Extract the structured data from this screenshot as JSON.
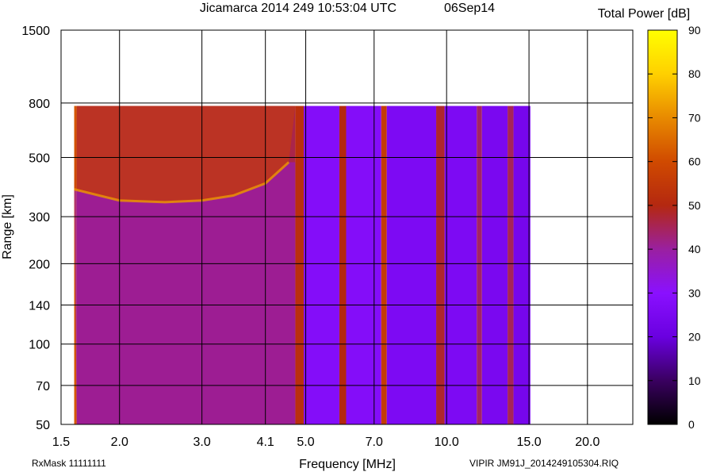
{
  "header": {
    "title": "Jicamarca 2014 249 10:53:04 UTC",
    "date": "06Sep14",
    "colorbar_label": "Total Power [dB]"
  },
  "footer": {
    "rxmask": "RxMask 11111111",
    "filename": "VIPIR  JM91J_2014249105304.RIQ"
  },
  "chart_data": {
    "type": "heatmap",
    "title": "Jicamarca 2014 249 10:53:04 UTC",
    "xlabel": "Frequency [MHz]",
    "ylabel": "Range [km]",
    "xscale": "log",
    "yscale": "log",
    "xlim": [
      1.5,
      25
    ],
    "ylim": [
      50,
      1500
    ],
    "grid": true,
    "x_ticks": [
      1.5,
      2.0,
      3.0,
      4.1,
      5.0,
      7.0,
      10.0,
      15.0,
      20.0
    ],
    "x_tick_labels": [
      "1.5",
      "2.0",
      "3.0",
      "4.1",
      "5.0",
      "7.0",
      "10.0",
      "15.0",
      "20.0"
    ],
    "y_ticks": [
      50,
      70,
      100,
      140,
      200,
      300,
      500,
      800,
      1500
    ],
    "y_tick_labels": [
      "50",
      "70",
      "100",
      "140",
      "200",
      "300",
      "500",
      "800",
      "1500"
    ],
    "colorbar": {
      "label": "Total Power [dB]",
      "range": [
        0,
        90
      ],
      "ticks": [
        0,
        10,
        20,
        30,
        40,
        50,
        60,
        70,
        80,
        90
      ],
      "tick_labels": [
        "0",
        "10",
        "20",
        "30",
        "40",
        "50",
        "60",
        "70",
        "80",
        "90"
      ],
      "stops": [
        {
          "value": 0,
          "color": "#000000"
        },
        {
          "value": 10,
          "color": "#3a0060"
        },
        {
          "value": 20,
          "color": "#6a00e0"
        },
        {
          "value": 30,
          "color": "#8a10ff"
        },
        {
          "value": 40,
          "color": "#9a20a0"
        },
        {
          "value": 50,
          "color": "#b42810"
        },
        {
          "value": 60,
          "color": "#d04a00"
        },
        {
          "value": 70,
          "color": "#e88a00"
        },
        {
          "value": 80,
          "color": "#ffd000"
        },
        {
          "value": 90,
          "color": "#ffff00"
        }
      ]
    },
    "data_extent": {
      "freq_min": 1.6,
      "freq_max": 15.1,
      "range_min": 50,
      "range_max": 780
    },
    "frequency_bands": [
      {
        "f1": 1.6,
        "f2": 1.62,
        "db": 62
      },
      {
        "f1": 1.62,
        "f2": 4.75,
        "db": 46
      },
      {
        "f1": 4.75,
        "f2": 4.95,
        "db": 52
      },
      {
        "f1": 4.95,
        "f2": 5.9,
        "db": 28
      },
      {
        "f1": 5.9,
        "f2": 6.1,
        "db": 50
      },
      {
        "f1": 6.1,
        "f2": 7.25,
        "db": 28
      },
      {
        "f1": 7.25,
        "f2": 7.45,
        "db": 56
      },
      {
        "f1": 7.45,
        "f2": 9.5,
        "db": 26
      },
      {
        "f1": 9.5,
        "f2": 9.9,
        "db": 48
      },
      {
        "f1": 9.9,
        "f2": 11.6,
        "db": 26
      },
      {
        "f1": 11.6,
        "f2": 11.9,
        "db": 44
      },
      {
        "f1": 11.9,
        "f2": 13.5,
        "db": 25
      },
      {
        "f1": 13.5,
        "f2": 13.9,
        "db": 45
      },
      {
        "f1": 13.9,
        "f2": 15.1,
        "db": 24
      }
    ],
    "low_band_lower_region_db": 35,
    "echo_trace": {
      "description_free": true,
      "db": 62,
      "points": [
        {
          "freq": 1.6,
          "range": 380
        },
        {
          "freq": 2.0,
          "range": 345
        },
        {
          "freq": 2.5,
          "range": 340
        },
        {
          "freq": 3.0,
          "range": 345
        },
        {
          "freq": 3.5,
          "range": 360
        },
        {
          "freq": 4.1,
          "range": 400
        },
        {
          "freq": 4.6,
          "range": 480
        }
      ],
      "upper_fill_db": 57
    }
  }
}
